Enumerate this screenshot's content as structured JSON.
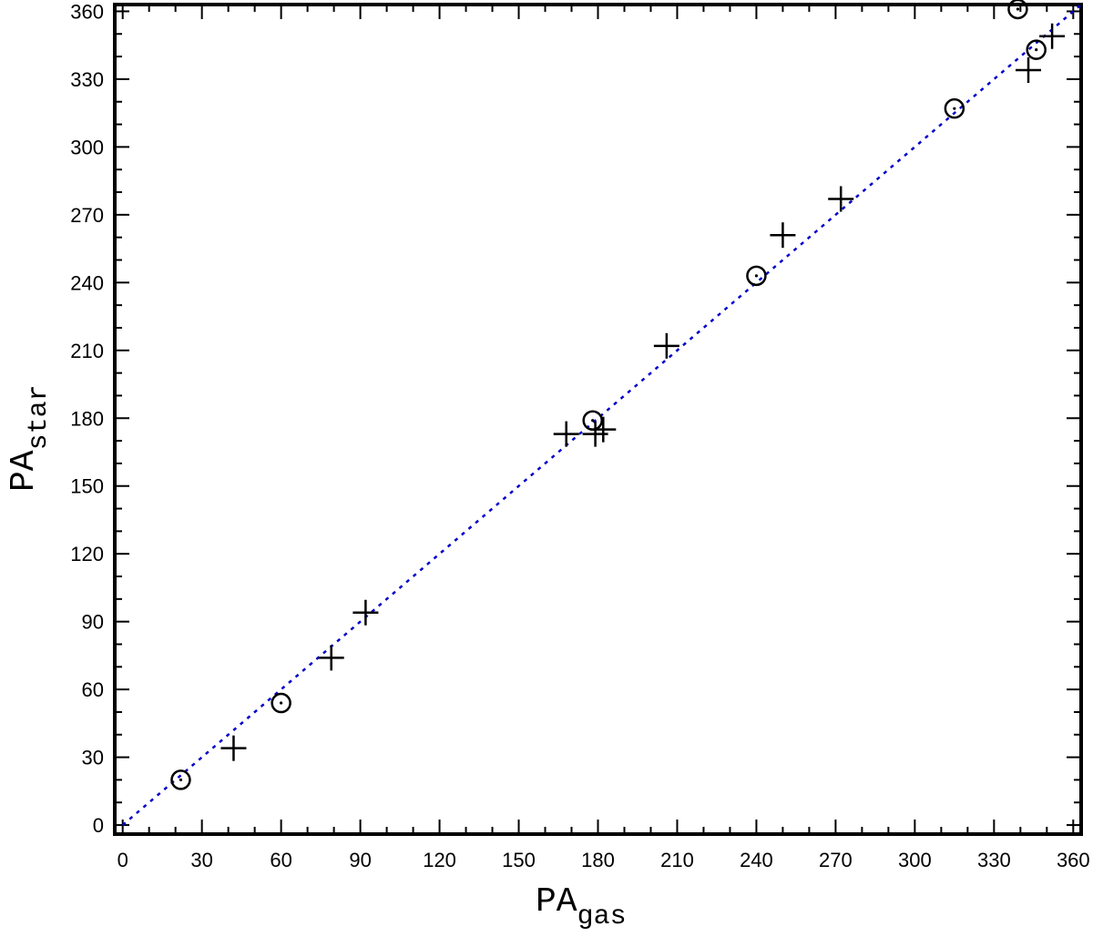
{
  "chart_data": {
    "type": "scatter",
    "xlabel": {
      "main": "PA",
      "sub": "gas"
    },
    "ylabel": {
      "main": "PA",
      "sub": "star"
    },
    "xlim": [
      -3,
      363
    ],
    "ylim": [
      -4,
      363
    ],
    "xticks": [
      0,
      30,
      60,
      90,
      120,
      150,
      180,
      210,
      240,
      270,
      300,
      330,
      360
    ],
    "yticks": [
      0,
      30,
      60,
      90,
      120,
      150,
      180,
      210,
      240,
      270,
      300,
      330,
      360
    ],
    "grid": false,
    "legend": "none",
    "reference_line": {
      "style": "dotted",
      "color": "#0000cc",
      "from": [
        0,
        0
      ],
      "to": [
        363,
        363
      ]
    },
    "series": [
      {
        "marker": "plus",
        "points": [
          [
            42,
            34
          ],
          [
            79,
            74
          ],
          [
            92,
            94
          ],
          [
            168,
            173
          ],
          [
            179,
            173
          ],
          [
            182,
            175
          ],
          [
            206,
            212
          ],
          [
            250,
            261
          ],
          [
            272,
            277
          ],
          [
            343,
            334
          ],
          [
            352,
            349
          ]
        ]
      },
      {
        "marker": "circle-dot",
        "points": [
          [
            22,
            20
          ],
          [
            60,
            54
          ],
          [
            178,
            179
          ],
          [
            240,
            243
          ],
          [
            315,
            317
          ],
          [
            339,
            361
          ],
          [
            346,
            343
          ]
        ]
      }
    ]
  }
}
